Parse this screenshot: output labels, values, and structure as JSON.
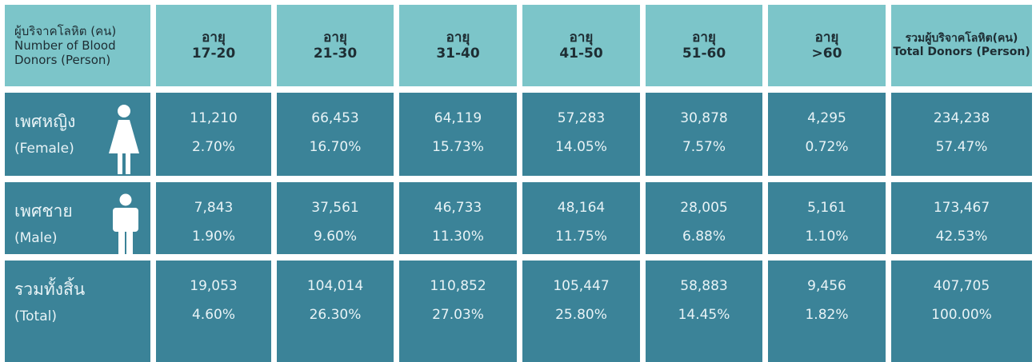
{
  "header": {
    "cells": [
      {
        "line1": "ผู้บริจาคโลหิต (คน)",
        "line2": "Number of Blood Donors (Person)"
      },
      {
        "line1": "อายุ",
        "line2": "17-20"
      },
      {
        "line1": "อายุ",
        "line2": "21-30"
      },
      {
        "line1": "อายุ",
        "line2": "31-40"
      },
      {
        "line1": "อายุ",
        "line2": "41-50"
      },
      {
        "line1": "อายุ",
        "line2": "51-60"
      },
      {
        "line1": "อายุ",
        "line2": ">60"
      },
      {
        "line1": "รวมผู้บริจาคโลหิต(คน)",
        "line2": "Total Donors (Person)"
      }
    ]
  },
  "rows": [
    {
      "label_th": "เพศหญิง",
      "label_en": "(Female)",
      "cells": [
        {
          "count": "11,210",
          "percent": "2.70%"
        },
        {
          "count": "66,453",
          "percent": "16.70%"
        },
        {
          "count": "64,119",
          "percent": "15.73%"
        },
        {
          "count": "57,283",
          "percent": "14.05%"
        },
        {
          "count": "30,878",
          "percent": "7.57%"
        },
        {
          "count": "4,295",
          "percent": "0.72%"
        },
        {
          "count": "234,238",
          "percent": "57.47%"
        }
      ]
    },
    {
      "label_th": "เพศชาย",
      "label_en": "(Male)",
      "cells": [
        {
          "count": "7,843",
          "percent": "1.90%"
        },
        {
          "count": "37,561",
          "percent": "9.60%"
        },
        {
          "count": "46,733",
          "percent": "11.30%"
        },
        {
          "count": "48,164",
          "percent": "11.75%"
        },
        {
          "count": "28,005",
          "percent": "6.88%"
        },
        {
          "count": "5,161",
          "percent": "1.10%"
        },
        {
          "count": "173,467",
          "percent": "42.53%"
        }
      ]
    },
    {
      "label_th": "รวมทั้งสิ้น",
      "label_en": "(Total)",
      "cells": [
        {
          "count": "19,053",
          "percent": "4.60%"
        },
        {
          "count": "104,014",
          "percent": "26.30%"
        },
        {
          "count": "110,852",
          "percent": "27.03%"
        },
        {
          "count": "105,447",
          "percent": "25.80%"
        },
        {
          "count": "58,883",
          "percent": "14.45%"
        },
        {
          "count": "9,456",
          "percent": "1.82%"
        },
        {
          "count": "407,705",
          "percent": "100.00%"
        }
      ]
    }
  ]
}
